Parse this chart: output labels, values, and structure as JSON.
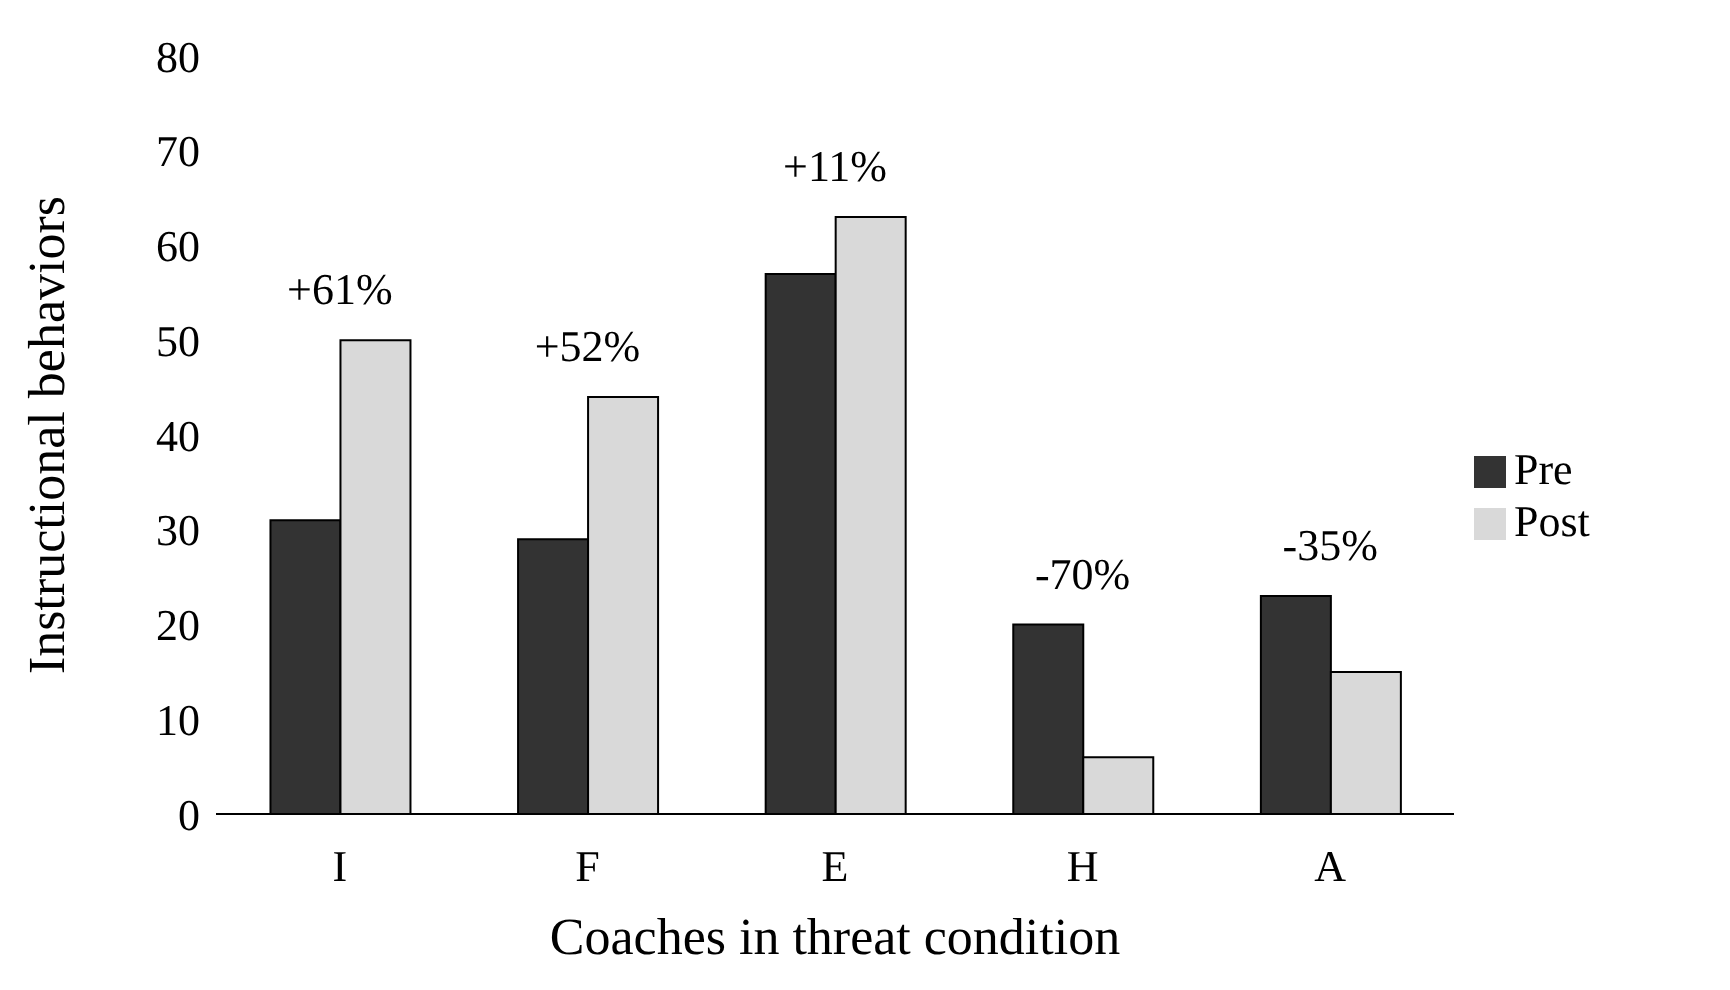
{
  "chart_data": {
    "type": "bar",
    "xlabel": "Coaches in threat condition",
    "ylabel": "Instructional behaviors",
    "categories": [
      "I",
      "F",
      "E",
      "H",
      "A"
    ],
    "series": [
      {
        "name": "Pre",
        "color": "#333333",
        "values": [
          31,
          29,
          57,
          20,
          23
        ]
      },
      {
        "name": "Post",
        "color": "#d9d9d9",
        "values": [
          50,
          44,
          63,
          6,
          15
        ]
      }
    ],
    "ylim": [
      0,
      80
    ],
    "yticks": [
      0,
      10,
      20,
      30,
      40,
      50,
      60,
      70,
      80
    ],
    "grid": false,
    "legend": "right",
    "annotations": [
      {
        "text": "+61%",
        "x": "I",
        "y": 50
      },
      {
        "text": "+52%",
        "x": "F",
        "y": 44
      },
      {
        "text": "+11%",
        "x": "E",
        "y": 63
      },
      {
        "text": "-70%",
        "x": "H",
        "y": 20
      },
      {
        "text": "-35%",
        "x": "A",
        "y": 23
      }
    ]
  }
}
